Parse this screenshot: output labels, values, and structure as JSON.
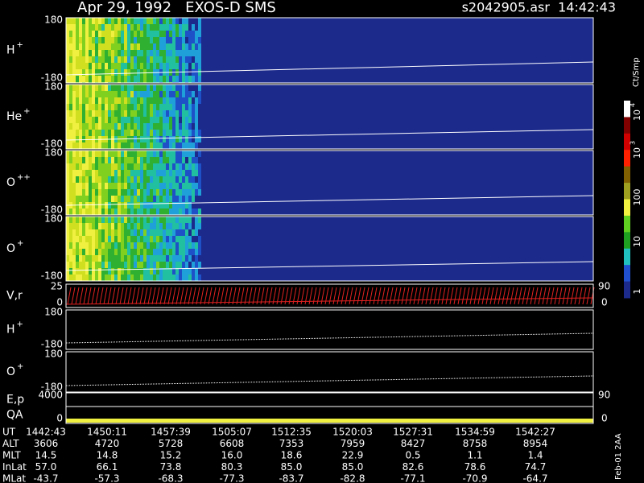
{
  "header": {
    "title": "Apr 29, 1992   EXOS-D SMS",
    "file": "s2042905.asr  14:42:43"
  },
  "panels": [
    {
      "label": "H",
      "sup": "+",
      "top": "180",
      "bottom": "-180"
    },
    {
      "label": "He",
      "sup": "+",
      "top": "180",
      "bottom": "-180"
    },
    {
      "label": "O",
      "sup": "++",
      "top": "180",
      "bottom": "-180"
    },
    {
      "label": "O",
      "sup": "+",
      "top": "180",
      "bottom": "-180"
    },
    {
      "label": "V,r",
      "top": "25",
      "bottom": "0",
      "right_top": "90",
      "right_bottom": "0"
    },
    {
      "label": "H",
      "sup": "+",
      "top": "180",
      "bottom": "-180"
    },
    {
      "label": "O",
      "sup": "+",
      "top": "180",
      "bottom": "-180"
    },
    {
      "label": "E,p",
      "top": "4000",
      "right_top": "90"
    },
    {
      "label": "QA",
      "bottom": "0",
      "right_bottom": "0"
    }
  ],
  "colorbar": {
    "title": "Ct/Smp",
    "labels": [
      {
        "base": "10",
        "exp": "4"
      },
      {
        "base": "10",
        "exp": "3"
      },
      "100",
      "10",
      "1"
    ]
  },
  "table": {
    "rows": [
      [
        "UT",
        "1442:43",
        "1450:11",
        "1457:39",
        "1505:07",
        "1512:35",
        "1520:03",
        "1527:31",
        "1534:59",
        "1542:27"
      ],
      [
        "ALT",
        "3606",
        "4720",
        "5728",
        "6608",
        "7353",
        "7959",
        "8427",
        "8758",
        "8954"
      ],
      [
        "MLT",
        "14.5",
        "14.8",
        "15.2",
        "16.0",
        "18.6",
        "22.9",
        "0.5",
        "1.1",
        "1.4"
      ],
      [
        "InLat",
        "57.0",
        "66.1",
        "73.8",
        "80.3",
        "85.0",
        "85.0",
        "82.6",
        "78.6",
        "74.7"
      ],
      [
        "MLat",
        "-43.7",
        "-57.3",
        "-68.3",
        "-77.3",
        "-83.7",
        "-82.8",
        "-77.1",
        "-70.9",
        "-64.7"
      ]
    ]
  },
  "footer": "Feb-01 2AA"
}
